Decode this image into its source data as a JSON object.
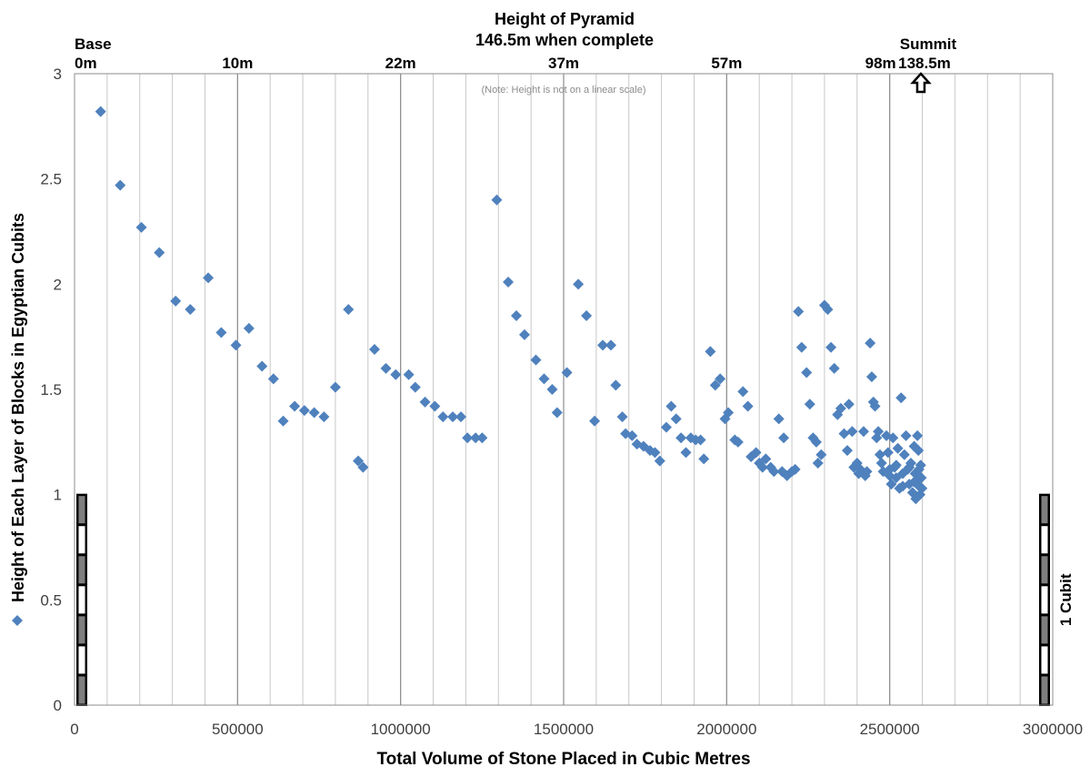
{
  "chart_data": {
    "type": "scatter",
    "xlabel": "Total Volume of Stone Placed in Cubic Metres",
    "ylabel": "Height of Each Layer of Blocks in Egyptian Cubits",
    "xlim": [
      0,
      3000000
    ],
    "ylim": [
      0,
      3
    ],
    "x_ticks": [
      0,
      500000,
      1000000,
      1500000,
      2000000,
      2500000,
      3000000
    ],
    "y_ticks": [
      0,
      0.5,
      1,
      1.5,
      2,
      2.5,
      3
    ],
    "minor_x_step": 100000,
    "grid": true,
    "legend_position": "left",
    "marker_color": "#4f81bd",
    "top_axis": {
      "title_line1": "Height of Pyramid",
      "title_line2": "146.5m when complete",
      "note": "(Note: Height is not on a linear scale)",
      "labels": [
        {
          "x": 0,
          "text": "0m",
          "header": "Base"
        },
        {
          "x": 500000,
          "text": "10m"
        },
        {
          "x": 1000000,
          "text": "22m"
        },
        {
          "x": 1500000,
          "text": "37m"
        },
        {
          "x": 2000000,
          "text": "57m"
        },
        {
          "x": 2500000,
          "text": "98m"
        },
        {
          "x": 2590000,
          "text": "138.5m",
          "header": "Summit"
        }
      ]
    },
    "cubit_label": "1 Cubit",
    "series": [
      {
        "points": [
          [
            80000,
            2.82
          ],
          [
            140000,
            2.47
          ],
          [
            205000,
            2.27
          ],
          [
            260000,
            2.15
          ],
          [
            310000,
            1.92
          ],
          [
            355000,
            1.88
          ],
          [
            410000,
            2.03
          ],
          [
            450000,
            1.77
          ],
          [
            495000,
            1.71
          ],
          [
            535000,
            1.79
          ],
          [
            575000,
            1.61
          ],
          [
            610000,
            1.55
          ],
          [
            640000,
            1.35
          ],
          [
            675000,
            1.42
          ],
          [
            705000,
            1.4
          ],
          [
            735000,
            1.39
          ],
          [
            765000,
            1.37
          ],
          [
            800000,
            1.51
          ],
          [
            840000,
            1.88
          ],
          [
            870000,
            1.16
          ],
          [
            885000,
            1.13
          ],
          [
            920000,
            1.69
          ],
          [
            955000,
            1.6
          ],
          [
            985000,
            1.57
          ],
          [
            1025000,
            1.57
          ],
          [
            1045000,
            1.51
          ],
          [
            1075000,
            1.44
          ],
          [
            1105000,
            1.42
          ],
          [
            1130000,
            1.37
          ],
          [
            1160000,
            1.37
          ],
          [
            1185000,
            1.37
          ],
          [
            1205000,
            1.27
          ],
          [
            1230000,
            1.27
          ],
          [
            1250000,
            1.27
          ],
          [
            1295000,
            2.4
          ],
          [
            1330000,
            2.01
          ],
          [
            1355000,
            1.85
          ],
          [
            1380000,
            1.76
          ],
          [
            1415000,
            1.64
          ],
          [
            1440000,
            1.55
          ],
          [
            1465000,
            1.5
          ],
          [
            1480000,
            1.39
          ],
          [
            1510000,
            1.58
          ],
          [
            1545000,
            2.0
          ],
          [
            1570000,
            1.85
          ],
          [
            1595000,
            1.35
          ],
          [
            1620000,
            1.71
          ],
          [
            1645000,
            1.71
          ],
          [
            1660000,
            1.52
          ],
          [
            1680000,
            1.37
          ],
          [
            1690000,
            1.29
          ],
          [
            1710000,
            1.28
          ],
          [
            1725000,
            1.24
          ],
          [
            1745000,
            1.23
          ],
          [
            1765000,
            1.21
          ],
          [
            1780000,
            1.2
          ],
          [
            1795000,
            1.16
          ],
          [
            1815000,
            1.32
          ],
          [
            1830000,
            1.42
          ],
          [
            1845000,
            1.36
          ],
          [
            1860000,
            1.27
          ],
          [
            1875000,
            1.2
          ],
          [
            1890000,
            1.27
          ],
          [
            1905000,
            1.26
          ],
          [
            1920000,
            1.26
          ],
          [
            1930000,
            1.17
          ],
          [
            1950000,
            1.68
          ],
          [
            1965000,
            1.52
          ],
          [
            1980000,
            1.55
          ],
          [
            1995000,
            1.36
          ],
          [
            2005000,
            1.39
          ],
          [
            2025000,
            1.26
          ],
          [
            2035000,
            1.25
          ],
          [
            2050000,
            1.49
          ],
          [
            2065000,
            1.42
          ],
          [
            2075000,
            1.18
          ],
          [
            2090000,
            1.2
          ],
          [
            2100000,
            1.15
          ],
          [
            2110000,
            1.13
          ],
          [
            2120000,
            1.17
          ],
          [
            2135000,
            1.13
          ],
          [
            2145000,
            1.11
          ],
          [
            2160000,
            1.36
          ],
          [
            2170000,
            1.11
          ],
          [
            2175000,
            1.27
          ],
          [
            2185000,
            1.09
          ],
          [
            2200000,
            1.11
          ],
          [
            2210000,
            1.12
          ],
          [
            2220000,
            1.87
          ],
          [
            2230000,
            1.7
          ],
          [
            2245000,
            1.58
          ],
          [
            2255000,
            1.43
          ],
          [
            2265000,
            1.27
          ],
          [
            2275000,
            1.25
          ],
          [
            2280000,
            1.15
          ],
          [
            2290000,
            1.19
          ],
          [
            2300000,
            1.9
          ],
          [
            2310000,
            1.88
          ],
          [
            2320000,
            1.7
          ],
          [
            2330000,
            1.6
          ],
          [
            2340000,
            1.38
          ],
          [
            2350000,
            1.41
          ],
          [
            2360000,
            1.29
          ],
          [
            2370000,
            1.21
          ],
          [
            2375000,
            1.43
          ],
          [
            2385000,
            1.3
          ],
          [
            2390000,
            1.13
          ],
          [
            2400000,
            1.15
          ],
          [
            2405000,
            1.1
          ],
          [
            2410000,
            1.12
          ],
          [
            2420000,
            1.3
          ],
          [
            2425000,
            1.09
          ],
          [
            2430000,
            1.11
          ],
          [
            2440000,
            1.72
          ],
          [
            2445000,
            1.56
          ],
          [
            2450000,
            1.44
          ],
          [
            2455000,
            1.42
          ],
          [
            2460000,
            1.27
          ],
          [
            2465000,
            1.3
          ],
          [
            2470000,
            1.19
          ],
          [
            2475000,
            1.15
          ],
          [
            2480000,
            1.11
          ],
          [
            2490000,
            1.28
          ],
          [
            2495000,
            1.2
          ],
          [
            2500000,
            1.12
          ],
          [
            2505000,
            1.05
          ],
          [
            2510000,
            1.27
          ],
          [
            2515000,
            1.13
          ],
          [
            2520000,
            1.08
          ],
          [
            2525000,
            1.22
          ],
          [
            2530000,
            1.03
          ],
          [
            2535000,
            1.46
          ],
          [
            2540000,
            1.1
          ],
          [
            2545000,
            1.19
          ],
          [
            2550000,
            1.28
          ],
          [
            2555000,
            1.12
          ],
          [
            2560000,
            1.05
          ],
          [
            2565000,
            1.15
          ],
          [
            2570000,
            1.01
          ],
          [
            2575000,
            1.23
          ],
          [
            2578000,
            1.1
          ],
          [
            2580000,
            0.98
          ],
          [
            2583000,
            1.06
          ],
          [
            2585000,
            1.28
          ],
          [
            2588000,
            1.21
          ],
          [
            2590000,
            1.12
          ],
          [
            2593000,
            1.0
          ],
          [
            2595000,
            1.14
          ],
          [
            2597000,
            1.08
          ],
          [
            2599000,
            1.03
          ],
          [
            2500000,
            1.09
          ],
          [
            2520000,
            1.14
          ],
          [
            2540000,
            1.04
          ],
          [
            2560000,
            1.13
          ],
          [
            2575000,
            1.06
          ],
          [
            2590000,
            1.04
          ]
        ]
      }
    ]
  }
}
